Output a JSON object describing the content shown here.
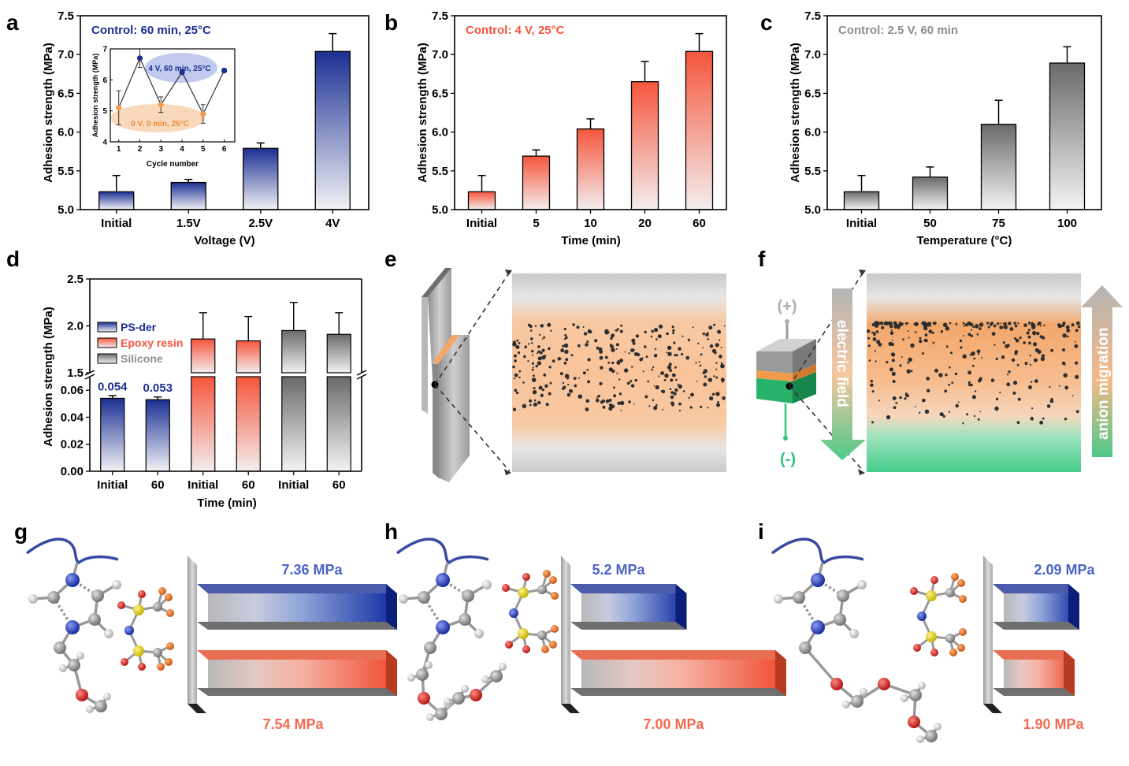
{
  "panel_labels": [
    "a",
    "b",
    "c",
    "d",
    "e",
    "f",
    "g",
    "h",
    "i"
  ],
  "colors": {
    "blue": "#1b2f93",
    "red": "#f5553c",
    "gray": "#6a6a6a",
    "orange": "#f39a4c",
    "green": "#2fc57c",
    "label_blue": "#4a63c8",
    "label_red": "#f26a4f"
  },
  "chart_data": [
    {
      "id": "a",
      "type": "bar",
      "control": "Control: 60 min, 25°C",
      "xlabel": "Voltage (V)",
      "ylabel": "Adhesion strength (MPa)",
      "ylim": [
        5.0,
        7.5
      ],
      "yticks": [
        "5.0",
        "5.5",
        "6.0",
        "6.5",
        "7.0",
        "7.5"
      ],
      "categories": [
        "Initial",
        "1.5V",
        "2.5V",
        "4V"
      ],
      "values": [
        5.23,
        5.35,
        5.79,
        7.04
      ],
      "errors": [
        0.21,
        0.04,
        0.07,
        0.23
      ],
      "color": "blue",
      "inset": {
        "type": "line",
        "xlabel": "Cycle number",
        "ylabel": "Adhesion strength (MPa)",
        "xlim": [
          0.6,
          6.5
        ],
        "ylim": [
          4,
          7
        ],
        "xticks": [
          "1",
          "2",
          "3",
          "4",
          "5",
          "6"
        ],
        "yticks": [
          "4",
          "5",
          "6",
          "7"
        ],
        "x": [
          1,
          2,
          3,
          4,
          5,
          6
        ],
        "values": [
          5.1,
          6.7,
          5.2,
          6.25,
          4.9,
          6.3
        ],
        "errors": [
          0.55,
          0.3,
          0.25,
          0.08,
          0.3,
          0.06
        ],
        "label_high": "4 V, 60 min, 25°C",
        "label_low": "0 V, 0 min, 25°C"
      }
    },
    {
      "id": "b",
      "type": "bar",
      "control": "Control: 4 V, 25°C",
      "xlabel": "Time (min)",
      "ylabel": "Adhesion strength (MPa)",
      "ylim": [
        5.0,
        7.5
      ],
      "yticks": [
        "5.0",
        "5.5",
        "6.0",
        "6.5",
        "7.0",
        "7.5"
      ],
      "categories": [
        "Initial",
        "5",
        "10",
        "20",
        "60"
      ],
      "values": [
        5.23,
        5.69,
        6.04,
        6.65,
        7.04
      ],
      "errors": [
        0.21,
        0.08,
        0.13,
        0.26,
        0.23
      ],
      "color": "red"
    },
    {
      "id": "c",
      "type": "bar",
      "control": "Control: 2.5 V, 60 min",
      "xlabel": "Temperature (°C)",
      "ylabel": "Adhesion strength (MPa)",
      "ylim": [
        5.0,
        7.5
      ],
      "yticks": [
        "5.0",
        "5.5",
        "6.0",
        "6.5",
        "7.0",
        "7.5"
      ],
      "categories": [
        "Initial",
        "50",
        "75",
        "100"
      ],
      "values": [
        5.23,
        5.42,
        6.1,
        6.89
      ],
      "errors": [
        0.21,
        0.13,
        0.31,
        0.21
      ],
      "color": "gray"
    },
    {
      "id": "d",
      "type": "bar",
      "xlabel": "Time (min)",
      "ylabel": "Adhesion strength (MPa)",
      "axis_break": true,
      "lower_ylim": [
        0,
        0.07
      ],
      "lower_yticks": [
        "0.00",
        "0.02",
        "0.04",
        "0.06"
      ],
      "upper_ylim": [
        1.5,
        2.5
      ],
      "upper_yticks": [
        "1.5",
        "2.0",
        "2.5"
      ],
      "categories": [
        "Initial",
        "60",
        "Initial",
        "60",
        "Initial",
        "60"
      ],
      "values": [
        0.054,
        0.053,
        1.86,
        1.84,
        1.95,
        1.91
      ],
      "errors": [
        0.002,
        0.002,
        0.28,
        0.26,
        0.3,
        0.23
      ],
      "series_of_bar": [
        "blue",
        "blue",
        "red",
        "red",
        "gray",
        "gray"
      ],
      "data_labels": [
        "0.054",
        "0.053",
        "",
        "",
        "",
        ""
      ],
      "legend": [
        {
          "name": "PS-der",
          "color": "blue"
        },
        {
          "name": "Epoxy resin",
          "color": "red"
        },
        {
          "name": "Silicone",
          "color": "gray"
        }
      ]
    }
  ],
  "panel_f": {
    "plus": "(+)",
    "minus": "(-)",
    "field": "electric field",
    "migration": "anion migration"
  },
  "panels_ghi": [
    {
      "id": "g",
      "top": "7.36 MPa",
      "bottom": "7.54 MPa",
      "top_frac": 1.0,
      "bottom_frac": 1.0
    },
    {
      "id": "h",
      "top": "5.2 MPa",
      "bottom": "7.00 MPa",
      "top_frac": 0.45,
      "bottom_frac": 1.0
    },
    {
      "id": "i",
      "top": "2.09 MPa",
      "bottom": "1.90 MPa",
      "top_frac": 0.55,
      "bottom_frac": 0.5
    }
  ]
}
